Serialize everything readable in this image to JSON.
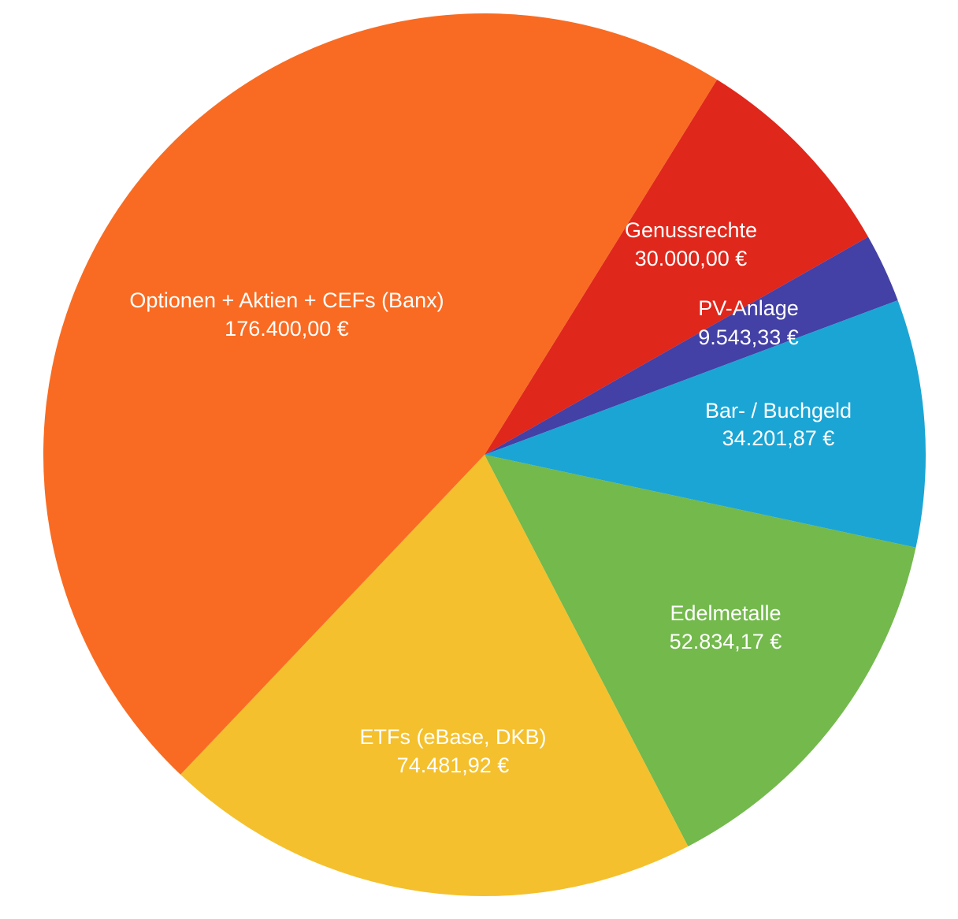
{
  "chart_data": {
    "type": "pie",
    "title": "",
    "currency": "€",
    "slices": [
      {
        "label": "Genussrechte",
        "value_text": "30.000,00 €",
        "value": 30000.0,
        "color": "#E0271B"
      },
      {
        "label": "PV-Anlage",
        "value_text": "9.543,33 €",
        "value": 9543.33,
        "color": "#4340A6"
      },
      {
        "label": "Bar- / Buchgeld",
        "value_text": "34.201,87 €",
        "value": 34201.87,
        "color": "#1BA5D5"
      },
      {
        "label": "Edelmetalle",
        "value_text": "52.834,17 €",
        "value": 52834.17,
        "color": "#73B94C"
      },
      {
        "label": "ETFs (eBase, DKB)",
        "value_text": "74.481,92 €",
        "value": 74481.92,
        "color": "#F4C02D"
      },
      {
        "label": "Optionen + Aktien + CEFs (Banx)",
        "value_text": "176.400,00 €",
        "value": 176400.0,
        "color": "#F96B22"
      }
    ]
  }
}
